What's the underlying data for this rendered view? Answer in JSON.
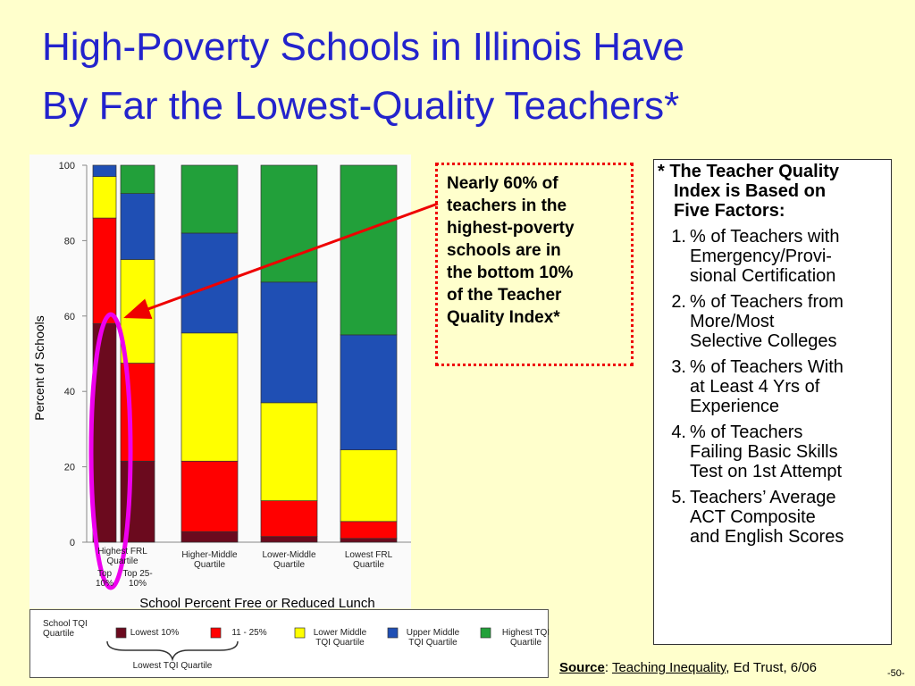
{
  "title": [
    "High-Poverty Schools in Illinois Have",
    "By Far the Lowest-Quality Teachers*"
  ],
  "chart_data": {
    "type": "stacked_bar",
    "ylabel": "Percent of Schools",
    "xlabel": "School Percent Free or Reduced Lunch",
    "group_label": "Highest FRL Quartile",
    "categories": [
      "Top 10%",
      "Top 25-10%",
      "Higher-Middle Quartile",
      "Lower-Middle Quartile",
      "Lowest FRL Quartile"
    ],
    "ylim": [
      0,
      100
    ],
    "yticks": [
      0,
      20,
      40,
      60,
      80,
      100
    ],
    "grid": false,
    "legend_title": "School TQI Quartile",
    "legend_group_label": "Lowest TQI Quartile",
    "series": [
      {
        "name": "Lowest 10%",
        "color": "#6b0a1e",
        "values": [
          58,
          21.5,
          2.8,
          1.5,
          1
        ]
      },
      {
        "name": "11 - 25%",
        "color": "#ff0000",
        "values": [
          28,
          26,
          18.7,
          9.5,
          4.5
        ]
      },
      {
        "name": "Lower Middle TQI Quartile",
        "color": "#ffff00",
        "values": [
          11,
          27.5,
          34,
          26,
          19
        ]
      },
      {
        "name": "Upper Middle TQI Quartile",
        "color": "#1f4fb4",
        "values": [
          3,
          17.5,
          26.5,
          32,
          30.5
        ]
      },
      {
        "name": "Highest TQI Quartile",
        "color": "#22a03a",
        "values": [
          0,
          7.5,
          18,
          31,
          45
        ]
      }
    ]
  },
  "callout": [
    "Nearly 60% of",
    "teachers in the",
    "highest-poverty",
    "schools are in",
    "the bottom 10%",
    "of the Teacher",
    "Quality Index*"
  ],
  "footnote": {
    "heading": [
      "* The Teacher Quality",
      "Index is Based on",
      "Five Factors:"
    ],
    "items": [
      {
        "marker": "1.",
        "lines": [
          "% of Teachers with",
          "Emergency/Provi-",
          "sional Certification"
        ]
      },
      {
        "marker": "2.",
        "lines": [
          "% of Teachers from",
          "More/Most",
          "Selective Colleges"
        ]
      },
      {
        "marker": "3.",
        "lines": [
          "% of Teachers With",
          "at Least 4 Yrs of",
          "Experience"
        ]
      },
      {
        "marker": "4.",
        "lines": [
          "% of Teachers",
          "Failing Basic Skills",
          "Test on 1st Attempt"
        ]
      },
      {
        "marker": "5.",
        "lines": [
          "Teachers’ Average",
          "ACT Composite",
          "and English Scores"
        ]
      }
    ]
  },
  "source": {
    "label": "Source",
    "sep": ":",
    "link": "Teaching Inequality",
    "rest": ", Ed Trust, 6/06"
  },
  "page_number": "-50-"
}
